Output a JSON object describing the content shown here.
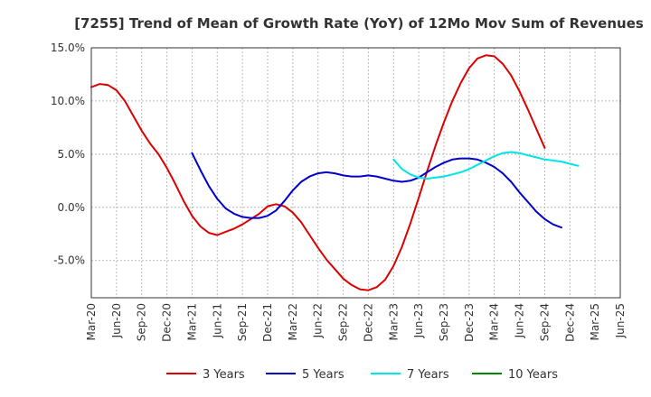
{
  "chart_data": {
    "type": "line",
    "title": "[7255]  Trend of Mean of Growth Rate (YoY) of 12Mo Mov Sum of Revenues",
    "xlabel": "",
    "ylabel": "",
    "ylim": [
      -8.5,
      15.0
    ],
    "y_ticks": [
      15.0,
      10.0,
      5.0,
      0.0,
      -5.0
    ],
    "y_tick_labels": [
      "15.0%",
      "10.0%",
      "5.0%",
      "0.0%",
      "-5.0%"
    ],
    "x_tick_labels": [
      "Mar-20",
      "Jun-20",
      "Sep-20",
      "Dec-20",
      "Mar-21",
      "Jun-21",
      "Sep-21",
      "Dec-21",
      "Mar-22",
      "Jun-22",
      "Sep-22",
      "Dec-22",
      "Mar-23",
      "Jun-23",
      "Sep-23",
      "Dec-23",
      "Mar-24",
      "Jun-24",
      "Sep-24",
      "Dec-24",
      "Mar-25",
      "Jun-25"
    ],
    "x_start": "2020-03",
    "grid": true,
    "legend_position": "bottom",
    "series": [
      {
        "name": "3 Years",
        "color": "#dd0000",
        "start_index": 0,
        "values": [
          11.3,
          11.6,
          11.5,
          11.0,
          10.0,
          8.6,
          7.2,
          6.0,
          5.0,
          3.7,
          2.2,
          0.6,
          -0.8,
          -1.8,
          -2.4,
          -2.6,
          -2.3,
          -2.0,
          -1.6,
          -1.1,
          -0.6,
          0.1,
          0.3,
          0.1,
          -0.5,
          -1.4,
          -2.6,
          -3.8,
          -4.9,
          -5.8,
          -6.7,
          -7.3,
          -7.7,
          -7.8,
          -7.5,
          -6.8,
          -5.5,
          -3.7,
          -1.5,
          0.9,
          3.4,
          5.8,
          8.0,
          10.0,
          11.7,
          13.1,
          14.0,
          14.3,
          14.2,
          13.5,
          12.4,
          10.9,
          9.2,
          7.4,
          5.6
        ]
      },
      {
        "name": "5 Years",
        "color": "#0000cc",
        "start_index": 12,
        "values": [
          5.1,
          3.5,
          2.0,
          0.8,
          -0.1,
          -0.6,
          -0.9,
          -1.0,
          -1.0,
          -0.8,
          -0.3,
          0.6,
          1.6,
          2.4,
          2.9,
          3.2,
          3.3,
          3.2,
          3.0,
          2.9,
          2.9,
          3.0,
          2.9,
          2.7,
          2.5,
          2.4,
          2.5,
          2.8,
          3.3,
          3.8,
          4.2,
          4.5,
          4.6,
          4.6,
          4.5,
          4.2,
          3.8,
          3.2,
          2.4,
          1.4,
          0.5,
          -0.4,
          -1.1,
          -1.6,
          -1.9
        ]
      },
      {
        "name": "7 Years",
        "color": "#00e5e5",
        "start_index": 36,
        "values": [
          4.5,
          3.6,
          3.1,
          2.8,
          2.7,
          2.8,
          2.9,
          3.1,
          3.3,
          3.6,
          4.0,
          4.4,
          4.8,
          5.1,
          5.2,
          5.1,
          4.9,
          4.7,
          4.5,
          4.4,
          4.3,
          4.1,
          3.9
        ]
      },
      {
        "name": "10 Years",
        "color": "#008800",
        "start_index": 0,
        "values": []
      }
    ]
  }
}
